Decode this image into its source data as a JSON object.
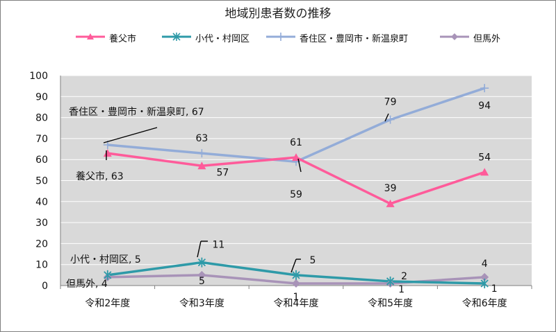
{
  "chart_data": {
    "type": "line",
    "title": "地域別患者数の推移",
    "categories": [
      "令和2年度",
      "令和3年度",
      "令和4年度",
      "令和5年度",
      "令和6年度"
    ],
    "ylim": [
      0,
      100
    ],
    "yticks": [
      "0",
      "10",
      "20",
      "30",
      "40",
      "50",
      "60",
      "70",
      "80",
      "90",
      "100"
    ],
    "grid": true,
    "legend_position": "top",
    "plot_background": "#d9d9d9",
    "series": [
      {
        "name": "養父市",
        "color": "#ff5b9a",
        "marker": "triangle",
        "values": [
          63,
          57,
          61,
          39,
          54
        ],
        "data_labels": [
          "養父市, 63",
          "57",
          "61",
          "39",
          "54"
        ]
      },
      {
        "name": "小代・村岡区",
        "color": "#2e9aa8",
        "marker": "asterisk",
        "values": [
          5,
          11,
          5,
          2,
          1
        ],
        "data_labels": [
          "小代・村岡区, 5",
          "11",
          "5",
          "2",
          "1"
        ]
      },
      {
        "name": "香住区・豊岡市・新温泉町",
        "color": "#93acd8",
        "marker": "plus",
        "values": [
          67,
          63,
          59,
          79,
          94
        ],
        "data_labels": [
          "香住区・豊岡市・新温泉町, 67",
          "63",
          "59",
          "79",
          "94"
        ]
      },
      {
        "name": "但馬外",
        "color": "#a893b8",
        "marker": "diamond",
        "values": [
          4,
          5,
          1,
          1,
          4
        ],
        "data_labels": [
          "但馬外, 4",
          "5",
          "1",
          "1",
          "4"
        ]
      }
    ]
  }
}
